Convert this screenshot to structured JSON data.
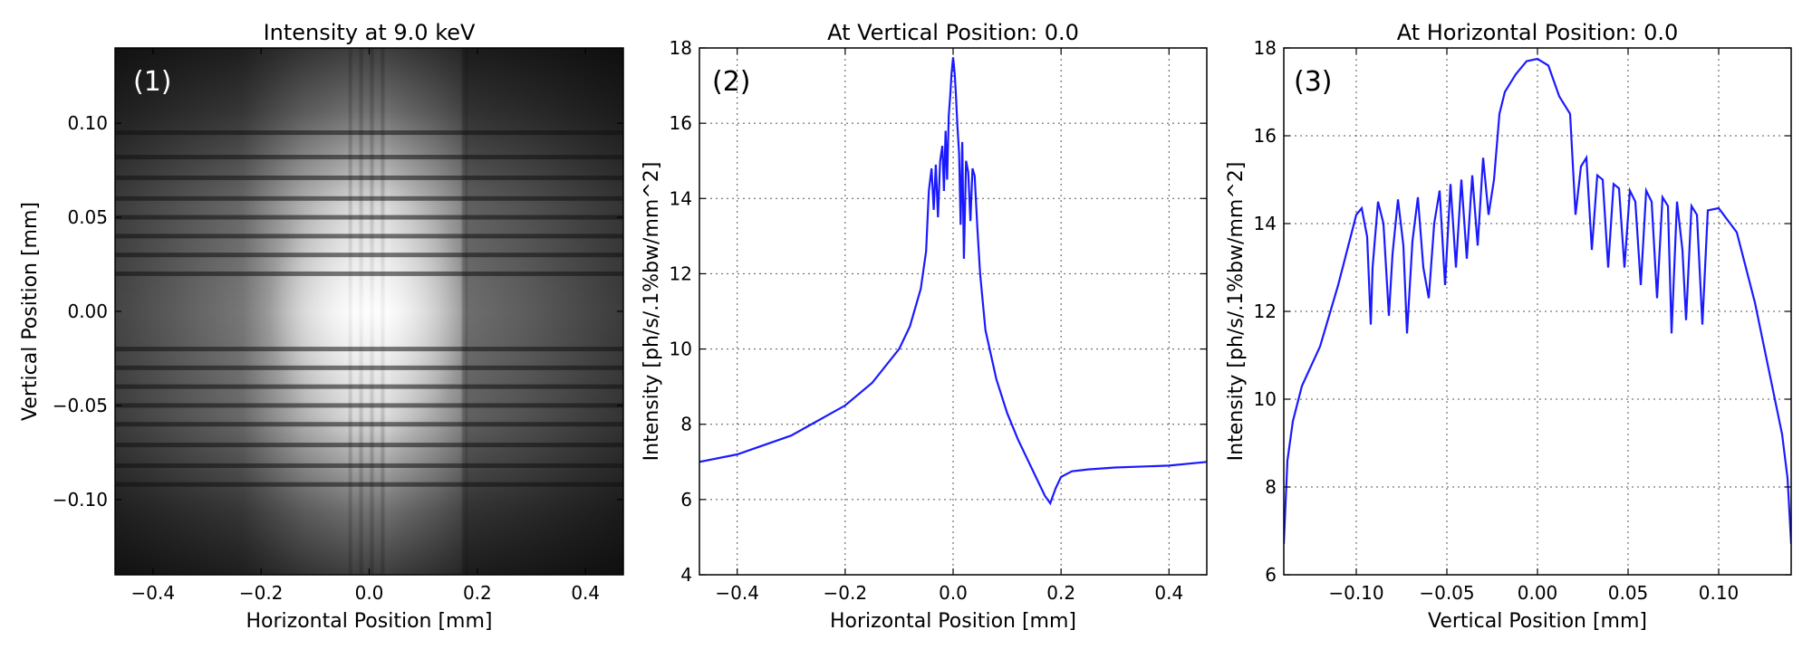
{
  "chart_data": [
    {
      "type": "heatmap",
      "panel_label": "(1)",
      "title": "Intensity at 9.0 keV",
      "xlabel": "Horizontal Position [mm]",
      "ylabel": "Vertical Position [mm]",
      "xlim": [
        -0.47,
        0.47
      ],
      "ylim": [
        -0.14,
        0.14
      ],
      "xticks": [
        -0.4,
        -0.2,
        0.0,
        0.2,
        0.4
      ],
      "xtick_labels": [
        "−0.4",
        "−0.2",
        "0.0",
        "0.2",
        "0.4"
      ],
      "yticks": [
        0.1,
        0.05,
        0.0,
        -0.05,
        -0.1
      ],
      "ytick_labels": [
        "0.10",
        "0.05",
        "0.00",
        "−0.05",
        "−0.10"
      ],
      "colormap": "gray",
      "bright_center": [
        0.0,
        0.0
      ],
      "horizontal_dark_bands_y": [
        0.095,
        0.082,
        0.071,
        0.06,
        0.05,
        0.04,
        0.03,
        0.02,
        -0.02,
        -0.03,
        -0.04,
        -0.05,
        -0.06,
        -0.071,
        -0.082,
        -0.092
      ],
      "vertical_stripes_x": [
        -0.035,
        -0.025,
        -0.015,
        -0.005,
        0.005,
        0.015,
        0.025,
        0.035
      ],
      "vertical_edge_x": 0.18,
      "grid": false
    },
    {
      "type": "line",
      "panel_label": "(2)",
      "title": "At Vertical Position: 0.0",
      "xlabel": "Horizontal Position [mm]",
      "ylabel": "Intensity [ph/s/.1%bw/mm^2]",
      "xlim": [
        -0.47,
        0.47
      ],
      "ylim": [
        4,
        18
      ],
      "xticks": [
        -0.4,
        -0.2,
        0.0,
        0.2,
        0.4
      ],
      "xtick_labels": [
        "−0.4",
        "−0.2",
        "0.0",
        "0.2",
        "0.4"
      ],
      "yticks": [
        4,
        6,
        8,
        10,
        12,
        14,
        16,
        18
      ],
      "ytick_labels": [
        "4",
        "6",
        "8",
        "10",
        "12",
        "14",
        "16",
        "18"
      ],
      "grid": true,
      "color": "#1a1aff",
      "series": [
        {
          "x": [
            -0.47,
            -0.4,
            -0.3,
            -0.2,
            -0.15,
            -0.1,
            -0.08,
            -0.06,
            -0.05,
            -0.045,
            -0.04,
            -0.036,
            -0.032,
            -0.028,
            -0.024,
            -0.02,
            -0.017,
            -0.014,
            -0.011,
            -0.008,
            -0.005,
            -0.003,
            0.0,
            0.003,
            0.005,
            0.008,
            0.011,
            0.014,
            0.017,
            0.02,
            0.024,
            0.028,
            0.032,
            0.036,
            0.04,
            0.045,
            0.05,
            0.06,
            0.08,
            0.1,
            0.12,
            0.14,
            0.16,
            0.17,
            0.18,
            0.19,
            0.2,
            0.22,
            0.25,
            0.3,
            0.4,
            0.47
          ],
          "y": [
            7.0,
            7.2,
            7.7,
            8.5,
            9.1,
            10.0,
            10.6,
            11.6,
            12.6,
            14.2,
            14.8,
            13.7,
            14.9,
            13.5,
            15.0,
            15.4,
            14.2,
            15.8,
            14.5,
            16.2,
            16.8,
            17.3,
            17.75,
            17.3,
            16.8,
            15.9,
            15.2,
            13.3,
            15.5,
            12.4,
            15.0,
            14.7,
            13.4,
            14.8,
            14.6,
            13.2,
            12.0,
            10.5,
            9.2,
            8.3,
            7.6,
            7.0,
            6.4,
            6.1,
            5.9,
            6.3,
            6.6,
            6.75,
            6.8,
            6.85,
            6.9,
            7.0
          ]
        }
      ]
    },
    {
      "type": "line",
      "panel_label": "(3)",
      "title": "At Horizontal Position: 0.0",
      "xlabel": "Vertical Position [mm]",
      "ylabel": "Intensity [ph/s/.1%bw/mm^2]",
      "xlim": [
        -0.14,
        0.14
      ],
      "ylim": [
        6,
        18
      ],
      "xticks": [
        -0.1,
        -0.05,
        0.0,
        0.05,
        0.1
      ],
      "xtick_labels": [
        "−0.10",
        "−0.05",
        "0.00",
        "0.05",
        "0.10"
      ],
      "yticks": [
        6,
        8,
        10,
        12,
        14,
        16,
        18
      ],
      "ytick_labels": [
        "6",
        "8",
        "10",
        "12",
        "14",
        "16",
        "18"
      ],
      "grid": true,
      "color": "#1a1aff",
      "series": [
        {
          "x": [
            -0.14,
            -0.138,
            -0.135,
            -0.13,
            -0.12,
            -0.11,
            -0.1,
            -0.097,
            -0.094,
            -0.092,
            -0.091,
            -0.088,
            -0.085,
            -0.082,
            -0.08,
            -0.077,
            -0.074,
            -0.072,
            -0.069,
            -0.066,
            -0.063,
            -0.06,
            -0.057,
            -0.054,
            -0.051,
            -0.048,
            -0.045,
            -0.042,
            -0.039,
            -0.036,
            -0.033,
            -0.03,
            -0.027,
            -0.024,
            -0.021,
            -0.018,
            -0.012,
            -0.006,
            0.0,
            0.006,
            0.012,
            0.018,
            0.021,
            0.024,
            0.027,
            0.03,
            0.033,
            0.036,
            0.039,
            0.042,
            0.045,
            0.048,
            0.051,
            0.054,
            0.057,
            0.06,
            0.063,
            0.066,
            0.069,
            0.072,
            0.074,
            0.077,
            0.08,
            0.082,
            0.085,
            0.088,
            0.091,
            0.094,
            0.1,
            0.11,
            0.12,
            0.13,
            0.135,
            0.138,
            0.14
          ],
          "y": [
            6.7,
            8.6,
            9.5,
            10.3,
            11.2,
            12.6,
            14.2,
            14.35,
            13.7,
            11.7,
            13.0,
            14.5,
            14.0,
            11.9,
            13.3,
            14.55,
            13.5,
            11.5,
            13.6,
            14.6,
            13.0,
            12.3,
            14.0,
            14.75,
            12.6,
            14.9,
            13.0,
            15.0,
            13.2,
            15.1,
            13.5,
            15.5,
            14.2,
            15.0,
            16.5,
            17.0,
            17.4,
            17.7,
            17.75,
            17.6,
            16.9,
            16.5,
            14.2,
            15.3,
            15.5,
            13.4,
            15.1,
            15.0,
            13.0,
            14.9,
            14.8,
            13.0,
            14.75,
            14.5,
            12.6,
            14.75,
            14.5,
            12.3,
            14.6,
            14.4,
            11.5,
            14.5,
            13.4,
            11.8,
            14.4,
            14.2,
            11.7,
            14.3,
            14.35,
            13.8,
            12.2,
            10.2,
            9.2,
            8.2,
            6.7
          ]
        }
      ]
    }
  ]
}
